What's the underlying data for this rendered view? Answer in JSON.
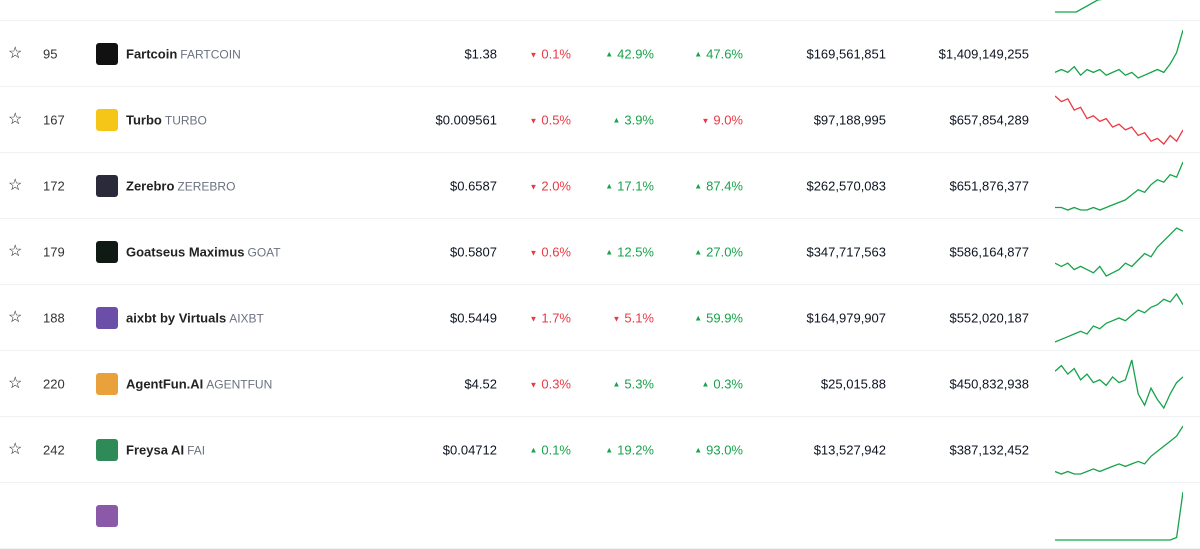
{
  "colors": {
    "up": "#16a34a",
    "down": "#ea3943"
  },
  "rows": [
    {
      "partial": true,
      "icon_color": "#cccccc",
      "spark": [
        0.1,
        0.1,
        0.3,
        0.35,
        0.6,
        0.7,
        0.9
      ],
      "trend": "up"
    },
    {
      "rank": "95",
      "name": "Fartcoin",
      "symbol": "FARTCOIN",
      "price": "$1.38",
      "h1": "0.1%",
      "h1_dir": "down",
      "h24": "42.9%",
      "h24_dir": "up",
      "d7": "47.6%",
      "d7_dir": "up",
      "volume": "$169,561,851",
      "market_cap": "$1,409,149,255",
      "icon_color": "#111111",
      "trend": "up",
      "spark": [
        5,
        6,
        5,
        7,
        4,
        6,
        5,
        6,
        4,
        5,
        6,
        4,
        5,
        3,
        4,
        5,
        6,
        5,
        8,
        12,
        20
      ]
    },
    {
      "rank": "167",
      "name": "Turbo",
      "symbol": "TURBO",
      "price": "$0.009561",
      "h1": "0.5%",
      "h1_dir": "down",
      "h24": "3.9%",
      "h24_dir": "up",
      "d7": "9.0%",
      "d7_dir": "down",
      "volume": "$97,188,995",
      "market_cap": "$657,854,289",
      "icon_color": "#f5c518",
      "trend": "down",
      "spark": [
        20,
        18,
        19,
        15,
        16,
        12,
        13,
        11,
        12,
        9,
        10,
        8,
        9,
        6,
        7,
        4,
        5,
        3,
        6,
        4,
        8
      ]
    },
    {
      "rank": "172",
      "name": "Zerebro",
      "symbol": "ZEREBRO",
      "price": "$0.6587",
      "h1": "2.0%",
      "h1_dir": "down",
      "h24": "17.1%",
      "h24_dir": "up",
      "d7": "87.4%",
      "d7_dir": "up",
      "volume": "$262,570,083",
      "market_cap": "$651,876,377",
      "icon_color": "#2a2a3a",
      "trend": "up",
      "spark": [
        2,
        2,
        1,
        2,
        1,
        1,
        2,
        1,
        2,
        3,
        4,
        5,
        7,
        9,
        8,
        11,
        13,
        12,
        15,
        14,
        20
      ]
    },
    {
      "rank": "179",
      "name": "Goatseus Maximus",
      "symbol": "GOAT",
      "price": "$0.5807",
      "h1": "0.6%",
      "h1_dir": "down",
      "h24": "12.5%",
      "h24_dir": "up",
      "d7": "27.0%",
      "d7_dir": "up",
      "volume": "$347,717,563",
      "market_cap": "$586,164,877",
      "icon_color": "#0f1a14",
      "trend": "up",
      "spark": [
        6,
        5,
        6,
        4,
        5,
        4,
        3,
        5,
        2,
        3,
        4,
        6,
        5,
        7,
        9,
        8,
        11,
        13,
        15,
        17,
        16
      ]
    },
    {
      "rank": "188",
      "name": "aixbt by Virtuals",
      "symbol": "AIXBT",
      "price": "$0.5449",
      "h1": "1.7%",
      "h1_dir": "down",
      "h24": "5.1%",
      "h24_dir": "down",
      "d7": "59.9%",
      "d7_dir": "up",
      "volume": "$164,979,907",
      "market_cap": "$552,020,187",
      "icon_color": "#6b4ea8",
      "trend": "up",
      "spark": [
        2,
        3,
        4,
        5,
        6,
        5,
        8,
        7,
        9,
        10,
        11,
        10,
        12,
        14,
        13,
        15,
        16,
        18,
        17,
        20,
        16
      ]
    },
    {
      "rank": "220",
      "name": "AgentFun.AI",
      "symbol": "AGENTFUN",
      "price": "$4.52",
      "h1": "0.3%",
      "h1_dir": "down",
      "h24": "5.3%",
      "h24_dir": "up",
      "d7": "0.3%",
      "d7_dir": "up",
      "volume": "$25,015.88",
      "market_cap": "$450,832,938",
      "icon_color": "#e9a23b",
      "trend": "up",
      "spark": [
        16,
        18,
        15,
        17,
        13,
        15,
        12,
        13,
        11,
        14,
        12,
        13,
        20,
        8,
        4,
        10,
        6,
        3,
        8,
        12,
        14
      ]
    },
    {
      "rank": "242",
      "name": "Freysa AI",
      "symbol": "FAI",
      "price": "$0.04712",
      "h1": "0.1%",
      "h1_dir": "up",
      "h24": "19.2%",
      "h24_dir": "up",
      "d7": "93.0%",
      "d7_dir": "up",
      "volume": "$13,527,942",
      "market_cap": "$387,132,452",
      "icon_color": "#2e8b57",
      "trend": "up",
      "spark": [
        2,
        1,
        2,
        1,
        1,
        2,
        3,
        2,
        3,
        4,
        5,
        4,
        5,
        6,
        5,
        8,
        10,
        12,
        14,
        16,
        20
      ]
    },
    {
      "partial": true,
      "icon_color": "#8a5aa8",
      "spark": [
        1,
        1,
        1,
        1,
        1,
        1,
        1,
        1,
        1,
        1,
        1,
        1,
        1,
        1,
        1,
        1,
        1,
        1,
        1,
        2,
        20
      ],
      "trend": "up"
    }
  ]
}
